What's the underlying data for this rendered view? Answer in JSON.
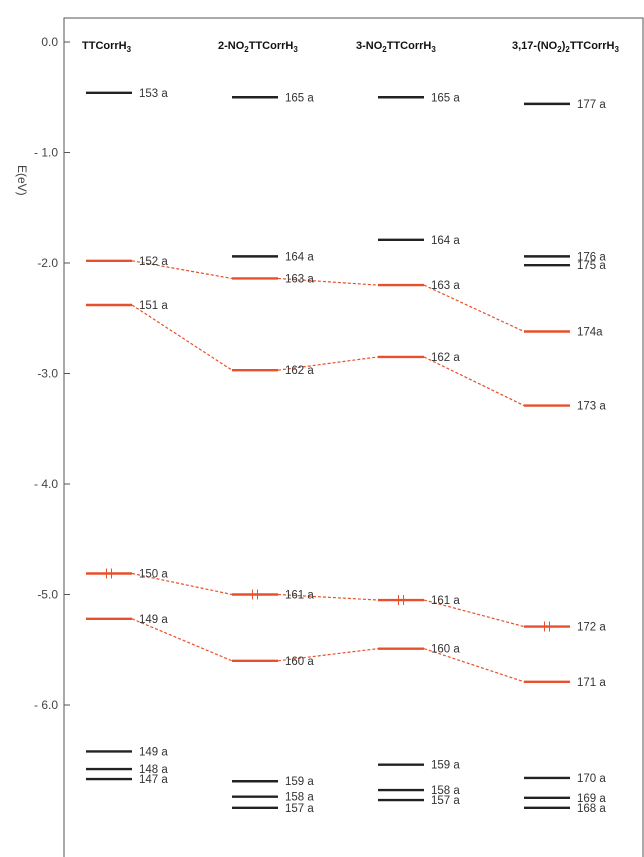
{
  "chart_data": {
    "type": "energy-level diagram",
    "ylabel": "E(eV)",
    "ylim": [
      -6.9,
      0.35
    ],
    "yticks": [
      0.0,
      -1.0,
      -2.0,
      -3.0,
      -4.0,
      -5.0,
      -6.0
    ],
    "ytick_labels": [
      "0.0",
      "- 1.0",
      "-2.0",
      "-3.0",
      "- 4.0",
      "-5.0",
      "- 6.0"
    ],
    "colors": {
      "level": "#222222",
      "highlight": "#e8502c",
      "connector": "#e8502c",
      "frame": "#555555"
    },
    "columns": [
      {
        "title_parts": [
          {
            "t": "TTCorrH"
          },
          {
            "t": "3",
            "sub": true
          }
        ],
        "levels": [
          {
            "label": "153 a",
            "energy": -0.46,
            "color": "black"
          },
          {
            "label": "152 a",
            "energy": -1.98,
            "color": "red"
          },
          {
            "label": "151 a",
            "energy": -2.38,
            "color": "red"
          },
          {
            "label": "150 a",
            "energy": -4.81,
            "color": "red",
            "occupied": true
          },
          {
            "label": "149 a",
            "energy": -5.22,
            "color": "red"
          },
          {
            "label": "149 a",
            "energy": -6.42,
            "color": "black"
          },
          {
            "label": "148 a",
            "energy": -6.58,
            "color": "black"
          },
          {
            "label": "147 a",
            "energy": -6.67,
            "color": "black"
          }
        ]
      },
      {
        "title_parts": [
          {
            "t": "2-NO"
          },
          {
            "t": "2",
            "sub": true
          },
          {
            "t": "TTCorrH"
          },
          {
            "t": "3",
            "sub": true
          }
        ],
        "levels": [
          {
            "label": "165 a",
            "energy": -0.5,
            "color": "black"
          },
          {
            "label": "164 a",
            "energy": -1.94,
            "color": "black"
          },
          {
            "label": "163 a",
            "energy": -2.14,
            "color": "red"
          },
          {
            "label": "162 a",
            "energy": -2.97,
            "color": "red"
          },
          {
            "label": "161 a",
            "energy": -5.0,
            "color": "red",
            "occupied": true
          },
          {
            "label": "160 a",
            "energy": -5.6,
            "color": "red"
          },
          {
            "label": "159 a",
            "energy": -6.69,
            "color": "black"
          },
          {
            "label": "158 a",
            "energy": -6.83,
            "color": "black"
          },
          {
            "label": "157 a",
            "energy": -6.93,
            "color": "black"
          }
        ]
      },
      {
        "title_parts": [
          {
            "t": "3-NO"
          },
          {
            "t": "2",
            "sub": true
          },
          {
            "t": "TTCorrH"
          },
          {
            "t": "3",
            "sub": true
          }
        ],
        "levels": [
          {
            "label": "165 a",
            "energy": -0.5,
            "color": "black"
          },
          {
            "label": "164 a",
            "energy": -1.79,
            "color": "black"
          },
          {
            "label": "163 a",
            "energy": -2.2,
            "color": "red"
          },
          {
            "label": "162 a",
            "energy": -2.85,
            "color": "red"
          },
          {
            "label": "161 a",
            "energy": -5.05,
            "color": "red",
            "occupied": true
          },
          {
            "label": "160 a",
            "energy": -5.49,
            "color": "red"
          },
          {
            "label": "159 a",
            "energy": -6.54,
            "color": "black"
          },
          {
            "label": "158 a",
            "energy": -6.77,
            "color": "black"
          },
          {
            "label": "157 a",
            "energy": -6.86,
            "color": "black"
          }
        ]
      },
      {
        "title_parts": [
          {
            "t": "3,17-(NO"
          },
          {
            "t": "2",
            "sub": true
          },
          {
            "t": ")"
          },
          {
            "t": "2",
            "sub": true
          },
          {
            "t": "TTCorrH"
          },
          {
            "t": "3",
            "sub": true
          }
        ],
        "levels": [
          {
            "label": "177 a",
            "energy": -0.56,
            "color": "black"
          },
          {
            "label": "176 a",
            "energy": -1.94,
            "color": "black"
          },
          {
            "label": "175 a",
            "energy": -2.02,
            "color": "black"
          },
          {
            "label": "174a",
            "energy": -2.62,
            "color": "red"
          },
          {
            "label": "173 a",
            "energy": -3.29,
            "color": "red"
          },
          {
            "label": "172 a",
            "energy": -5.29,
            "color": "red",
            "occupied": true
          },
          {
            "label": "171 a",
            "energy": -5.79,
            "color": "red"
          },
          {
            "label": "170 a",
            "energy": -6.66,
            "color": "black"
          },
          {
            "label": "169 a",
            "energy": -6.84,
            "color": "black"
          },
          {
            "label": "168 a",
            "energy": -6.93,
            "color": "black"
          }
        ]
      }
    ],
    "connectors": [
      [
        [
          0,
          1
        ],
        [
          1,
          2
        ],
        [
          2,
          2
        ],
        [
          3,
          3
        ]
      ],
      [
        [
          0,
          2
        ],
        [
          1,
          3
        ],
        [
          2,
          3
        ],
        [
          3,
          4
        ]
      ],
      [
        [
          0,
          3
        ],
        [
          1,
          4
        ],
        [
          2,
          4
        ],
        [
          3,
          5
        ]
      ],
      [
        [
          0,
          4
        ],
        [
          1,
          5
        ],
        [
          2,
          5
        ],
        [
          3,
          6
        ]
      ]
    ]
  }
}
